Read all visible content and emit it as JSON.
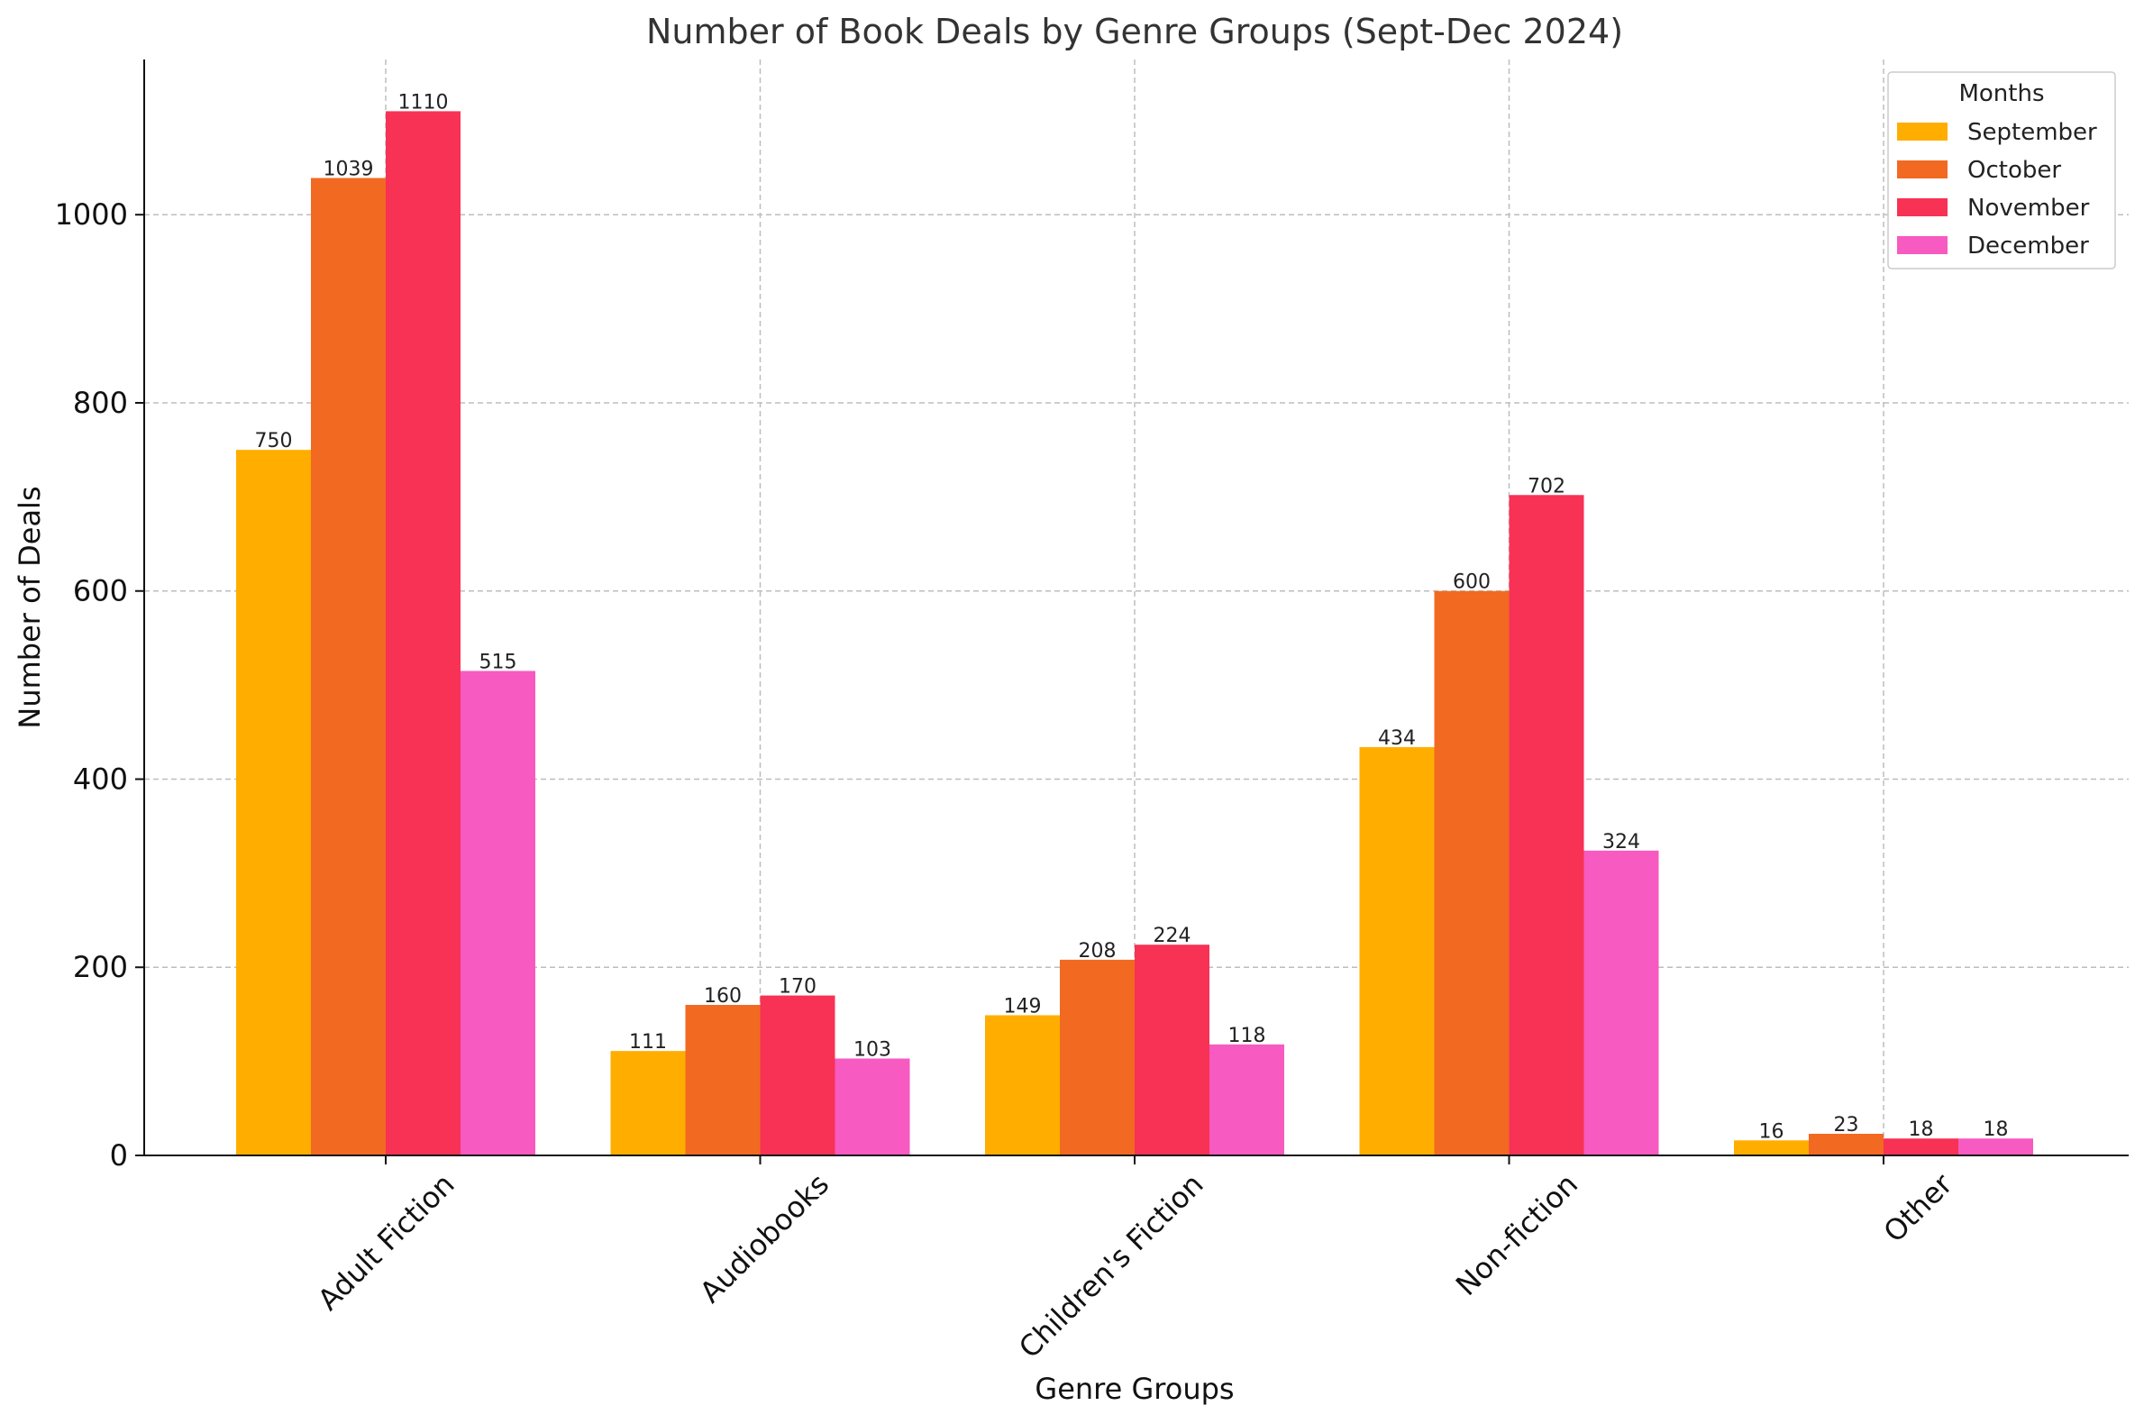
{
  "chart_data": {
    "type": "bar",
    "title": "Number of Book Deals by Genre Groups (Sept-Dec 2024)",
    "xlabel": "Genre Groups",
    "ylabel": "Number of Deals",
    "categories": [
      "Adult Fiction",
      "Audiobooks",
      "Children's Fiction",
      "Non-fiction",
      "Other"
    ],
    "series": [
      {
        "name": "September",
        "color": "#FFAE00",
        "values": [
          750,
          111,
          149,
          434,
          16
        ]
      },
      {
        "name": "October",
        "color": "#F26922",
        "values": [
          1039,
          160,
          208,
          600,
          23
        ]
      },
      {
        "name": "November",
        "color": "#F73255",
        "values": [
          1110,
          170,
          224,
          702,
          18
        ]
      },
      {
        "name": "December",
        "color": "#F75AC0",
        "values": [
          515,
          103,
          118,
          324,
          18
        ]
      }
    ],
    "ylim": [
      0,
      1165
    ],
    "yticks": [
      0,
      200,
      400,
      600,
      800,
      1000
    ],
    "grid": true,
    "legend": {
      "title": "Months",
      "placement": "top-right"
    }
  }
}
